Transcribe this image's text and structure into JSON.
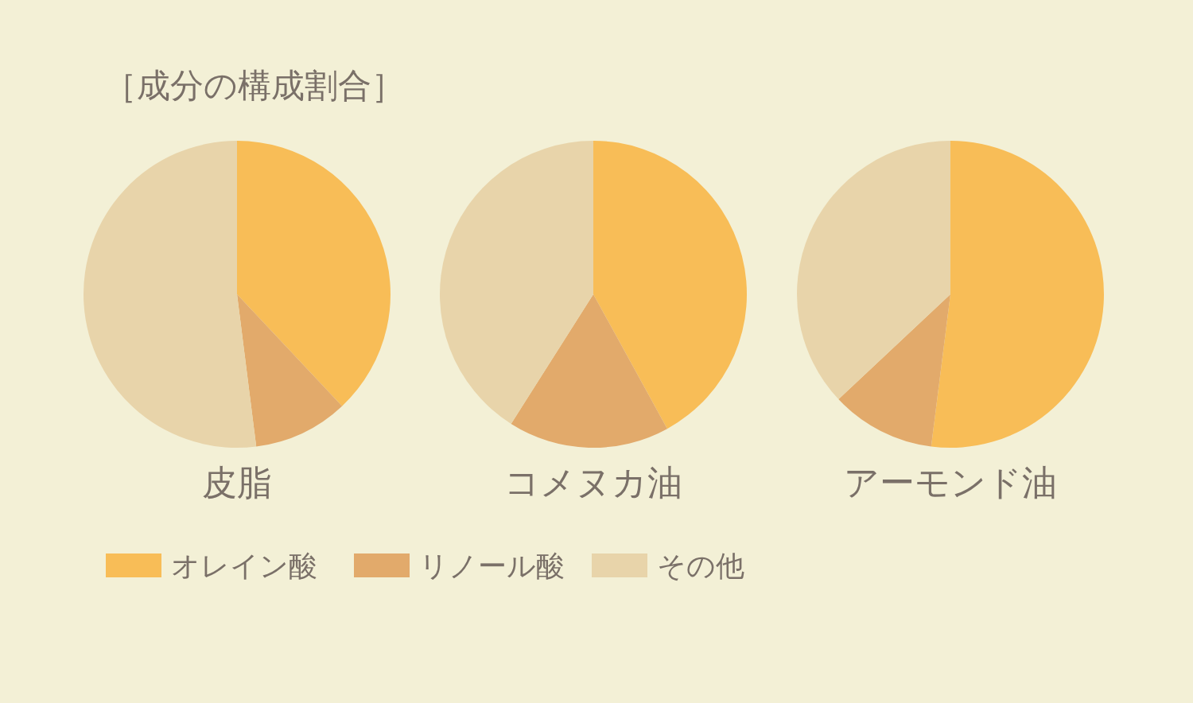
{
  "chart_data": [
    {
      "type": "pie",
      "title": "皮脂",
      "annotations": [
        "［成分の構成割合］"
      ],
      "legend": "bottom right",
      "categories": [
        "オレイン酸",
        "リノール酸",
        "その他"
      ],
      "values": [
        38,
        10,
        52
      ],
      "colors": [
        "#f8bd57",
        "#e2aa6b",
        "#e8d4aa"
      ]
    },
    {
      "type": "pie",
      "title": "コメヌカ油",
      "categories": [
        null,
        null,
        null
      ],
      "values": [
        42,
        17,
        41
      ],
      "colors": [
        "#f8bd57",
        "#e2aa6b",
        "#e8d4aa"
      ]
    },
    {
      "type": "pie",
      "title": "アーモンド油",
      "categories": [
        null,
        null,
        null
      ],
      "values": [
        52,
        11,
        37
      ],
      "colors": [
        "#f8bd57",
        "#e2aa6b",
        "#e8d4aa"
      ]
    }
  ]
}
